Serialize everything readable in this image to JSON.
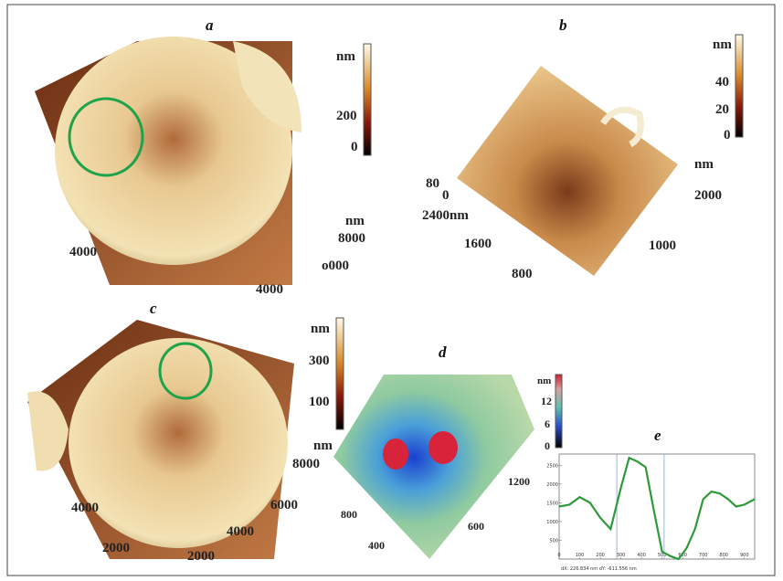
{
  "panels": {
    "a": {
      "label": "a",
      "scale": [
        "nm",
        "200",
        "0"
      ],
      "axis": [
        "4000",
        "nm",
        "8000",
        "o000",
        "4000"
      ]
    },
    "b": {
      "label": "b",
      "scale": [
        "nm",
        "40",
        "20",
        "0"
      ],
      "axis": [
        "80",
        "0",
        "2400nm",
        "1600",
        "800",
        "nm",
        "2000",
        "1000"
      ]
    },
    "c": {
      "label": "c",
      "scale": [
        "nm",
        "300",
        "100"
      ],
      "axis": [
        "nm",
        "8000",
        "6000",
        "4000",
        "2000",
        "4000",
        "2000"
      ]
    },
    "d": {
      "label": "d",
      "scale": [
        "nm",
        "12",
        "6",
        "0"
      ],
      "axis": [
        "1200",
        "800",
        "600",
        "400"
      ]
    },
    "e": {
      "label": "e"
    }
  },
  "chart_data": {
    "type": "line",
    "color": "#2e9a3a",
    "x": [
      0,
      50,
      100,
      150,
      200,
      250,
      300,
      340,
      380,
      420,
      460,
      500,
      540,
      580,
      600,
      620,
      660,
      700,
      740,
      780,
      820,
      860,
      900,
      950
    ],
    "values": [
      1400,
      1450,
      1650,
      1500,
      1100,
      800,
      1900,
      2700,
      2600,
      2450,
      1300,
      200,
      80,
      0,
      150,
      300,
      800,
      1600,
      1800,
      1750,
      1600,
      1400,
      1450,
      1600
    ],
    "xlim": [
      0,
      950
    ],
    "ylim": [
      0,
      2800
    ],
    "xticks": [
      0,
      100,
      200,
      300,
      400,
      500,
      600,
      700,
      800,
      900
    ],
    "yticks": [
      500,
      1000,
      1500,
      2000,
      2500
    ],
    "cursors": [
      280,
      510
    ],
    "footer": "dX: 226.834 nm dY: -611.556 nm"
  }
}
